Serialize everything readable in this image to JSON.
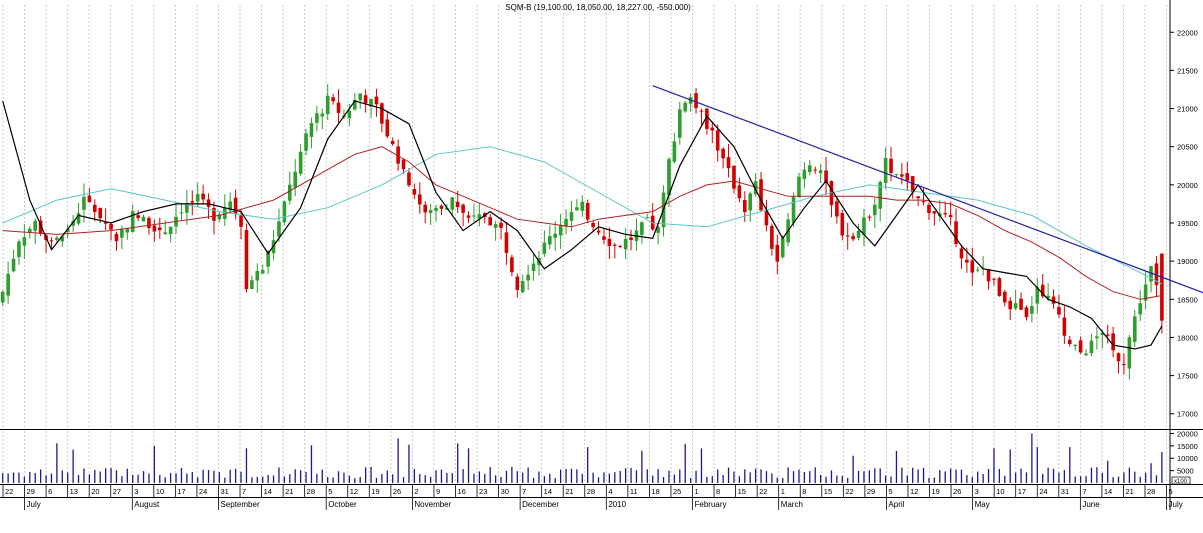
{
  "chart_data": {
    "type": "candlestick",
    "title": "SQM-B (19,100.00, 18,050.00, 18,227.00, -550.000)",
    "price_axis": {
      "min": 16800,
      "max": 22200,
      "ticks": [
        17000,
        17500,
        18000,
        18500,
        19000,
        19500,
        20000,
        20500,
        21000,
        21500,
        22000
      ]
    },
    "volume_axis": {
      "max": 21000,
      "ticks": [
        5000,
        10000,
        15000,
        20000
      ],
      "unit_label": "x100"
    },
    "date_ticks": [
      "22",
      "29",
      "6",
      "13",
      "20",
      "27",
      "3",
      "10",
      "17",
      "24",
      "31",
      "7",
      "14",
      "21",
      "28",
      "5",
      "12",
      "19",
      "26",
      "2",
      "9",
      "16",
      "23",
      "30",
      "7",
      "14",
      "21",
      "28",
      "4",
      "11",
      "18",
      "25",
      "1",
      "8",
      "15",
      "22",
      "1",
      "8",
      "15",
      "22",
      "29",
      "5",
      "12",
      "19",
      "26",
      "3",
      "10",
      "17",
      "24",
      "31",
      "7",
      "14",
      "21",
      "28",
      "5"
    ],
    "months": [
      {
        "label": "July",
        "tick": 1
      },
      {
        "label": "August",
        "tick": 6
      },
      {
        "label": "September",
        "tick": 10
      },
      {
        "label": "October",
        "tick": 15
      },
      {
        "label": "November",
        "tick": 19
      },
      {
        "label": "December",
        "tick": 24
      },
      {
        "label": "2010",
        "tick": 28
      },
      {
        "label": "February",
        "tick": 32
      },
      {
        "label": "March",
        "tick": 36
      },
      {
        "label": "April",
        "tick": 41
      },
      {
        "label": "May",
        "tick": 45
      },
      {
        "label": "June",
        "tick": 50
      },
      {
        "label": "July",
        "tick": 54
      }
    ],
    "close_path": [
      [
        0,
        18600
      ],
      [
        3,
        19300
      ],
      [
        6,
        19500
      ],
      [
        9,
        19200
      ],
      [
        12,
        19400
      ],
      [
        15,
        19800
      ],
      [
        18,
        19600
      ],
      [
        21,
        19300
      ],
      [
        24,
        19600
      ],
      [
        27,
        19500
      ],
      [
        30,
        19400
      ],
      [
        33,
        19700
      ],
      [
        36,
        19800
      ],
      [
        39,
        19600
      ],
      [
        42,
        19800
      ],
      [
        44,
        19500
      ],
      [
        45,
        18700
      ],
      [
        48,
        18900
      ],
      [
        51,
        19500
      ],
      [
        54,
        20200
      ],
      [
        57,
        20800
      ],
      [
        60,
        21100
      ],
      [
        63,
        20900
      ],
      [
        66,
        21200
      ],
      [
        69,
        21000
      ],
      [
        72,
        20500
      ],
      [
        74,
        20200
      ],
      [
        76,
        19900
      ],
      [
        78,
        19600
      ],
      [
        80,
        19700
      ],
      [
        83,
        19800
      ],
      [
        86,
        19500
      ],
      [
        89,
        19600
      ],
      [
        92,
        19400
      ],
      [
        95,
        18700
      ],
      [
        98,
        19000
      ],
      [
        101,
        19300
      ],
      [
        104,
        19600
      ],
      [
        107,
        19700
      ],
      [
        110,
        19400
      ],
      [
        113,
        19200
      ],
      [
        116,
        19300
      ],
      [
        119,
        19500
      ],
      [
        121,
        19400
      ],
      [
        123,
        20300
      ],
      [
        125,
        21000
      ],
      [
        127,
        21200
      ],
      [
        129,
        20900
      ],
      [
        131,
        20700
      ],
      [
        133,
        20300
      ],
      [
        135,
        20000
      ],
      [
        137,
        19700
      ],
      [
        139,
        20000
      ],
      [
        141,
        19400
      ],
      [
        143,
        19000
      ],
      [
        145,
        19500
      ],
      [
        147,
        20100
      ],
      [
        149,
        20300
      ],
      [
        151,
        20200
      ],
      [
        153,
        19700
      ],
      [
        155,
        19400
      ],
      [
        157,
        19300
      ],
      [
        159,
        19500
      ],
      [
        161,
        19800
      ],
      [
        163,
        20300
      ],
      [
        165,
        20100
      ],
      [
        167,
        20000
      ],
      [
        169,
        19800
      ],
      [
        171,
        19700
      ],
      [
        173,
        19600
      ],
      [
        175,
        19500
      ],
      [
        177,
        19100
      ],
      [
        179,
        18800
      ],
      [
        181,
        18900
      ],
      [
        183,
        18700
      ],
      [
        185,
        18500
      ],
      [
        187,
        18400
      ],
      [
        189,
        18200
      ],
      [
        191,
        18700
      ],
      [
        193,
        18500
      ],
      [
        195,
        18300
      ],
      [
        197,
        17900
      ],
      [
        199,
        17800
      ],
      [
        201,
        17900
      ],
      [
        203,
        18100
      ],
      [
        205,
        17800
      ],
      [
        207,
        17700
      ],
      [
        208,
        18000
      ],
      [
        210,
        18500
      ],
      [
        212,
        18900
      ],
      [
        213,
        18700
      ],
      [
        214,
        18227
      ]
    ],
    "ma_short_path": [
      [
        0,
        21100
      ],
      [
        5,
        19800
      ],
      [
        9,
        19150
      ],
      [
        14,
        19600
      ],
      [
        20,
        19500
      ],
      [
        26,
        19650
      ],
      [
        32,
        19750
      ],
      [
        38,
        19750
      ],
      [
        44,
        19650
      ],
      [
        49,
        19100
      ],
      [
        55,
        19700
      ],
      [
        60,
        20600
      ],
      [
        65,
        21100
      ],
      [
        70,
        21000
      ],
      [
        75,
        20800
      ],
      [
        80,
        19900
      ],
      [
        85,
        19400
      ],
      [
        90,
        19650
      ],
      [
        95,
        19400
      ],
      [
        100,
        18900
      ],
      [
        105,
        19150
      ],
      [
        110,
        19450
      ],
      [
        115,
        19350
      ],
      [
        120,
        19300
      ],
      [
        125,
        20250
      ],
      [
        130,
        20900
      ],
      [
        135,
        20500
      ],
      [
        140,
        19800
      ],
      [
        144,
        19300
      ],
      [
        148,
        19700
      ],
      [
        152,
        20050
      ],
      [
        157,
        19500
      ],
      [
        161,
        19200
      ],
      [
        165,
        19600
      ],
      [
        169,
        20000
      ],
      [
        173,
        19600
      ],
      [
        177,
        19200
      ],
      [
        181,
        18900
      ],
      [
        185,
        18850
      ],
      [
        189,
        18800
      ],
      [
        193,
        18500
      ],
      [
        197,
        18400
      ],
      [
        201,
        18250
      ],
      [
        205,
        17900
      ],
      [
        209,
        17850
      ],
      [
        212,
        17900
      ],
      [
        214,
        18150
      ]
    ],
    "ma_mid_path": [
      [
        0,
        19400
      ],
      [
        10,
        19350
      ],
      [
        20,
        19400
      ],
      [
        30,
        19500
      ],
      [
        40,
        19600
      ],
      [
        45,
        19700
      ],
      [
        50,
        19800
      ],
      [
        55,
        20000
      ],
      [
        60,
        20200
      ],
      [
        65,
        20400
      ],
      [
        70,
        20500
      ],
      [
        75,
        20300
      ],
      [
        80,
        20000
      ],
      [
        85,
        19850
      ],
      [
        90,
        19700
      ],
      [
        95,
        19550
      ],
      [
        100,
        19500
      ],
      [
        105,
        19450
      ],
      [
        110,
        19550
      ],
      [
        115,
        19600
      ],
      [
        120,
        19650
      ],
      [
        125,
        19850
      ],
      [
        130,
        20000
      ],
      [
        135,
        20050
      ],
      [
        140,
        19950
      ],
      [
        145,
        19850
      ],
      [
        150,
        19850
      ],
      [
        155,
        19850
      ],
      [
        160,
        19850
      ],
      [
        165,
        19800
      ],
      [
        170,
        19800
      ],
      [
        175,
        19750
      ],
      [
        180,
        19600
      ],
      [
        185,
        19400
      ],
      [
        190,
        19250
      ],
      [
        195,
        19050
      ],
      [
        200,
        18800
      ],
      [
        205,
        18600
      ],
      [
        210,
        18500
      ],
      [
        214,
        18550
      ]
    ],
    "ma_long_path": [
      [
        0,
        19500
      ],
      [
        10,
        19800
      ],
      [
        20,
        19950
      ],
      [
        30,
        19800
      ],
      [
        40,
        19650
      ],
      [
        50,
        19550
      ],
      [
        60,
        19700
      ],
      [
        70,
        20000
      ],
      [
        80,
        20400
      ],
      [
        90,
        20500
      ],
      [
        100,
        20300
      ],
      [
        110,
        19900
      ],
      [
        120,
        19500
      ],
      [
        130,
        19450
      ],
      [
        140,
        19650
      ],
      [
        150,
        19850
      ],
      [
        160,
        20000
      ],
      [
        170,
        19900
      ],
      [
        180,
        19800
      ],
      [
        190,
        19600
      ],
      [
        200,
        19200
      ],
      [
        210,
        18850
      ],
      [
        214,
        18700
      ]
    ],
    "trendline": {
      "from": [
        120,
        21300
      ],
      "to": [
        223,
        18550
      ]
    },
    "volume_spikes": [
      [
        10,
        16000
      ],
      [
        13,
        13500
      ],
      [
        28,
        15000
      ],
      [
        45,
        14000
      ],
      [
        57,
        15200
      ],
      [
        73,
        18000
      ],
      [
        75,
        15500
      ],
      [
        84,
        16000
      ],
      [
        86,
        14000
      ],
      [
        108,
        14500
      ],
      [
        118,
        13000
      ],
      [
        126,
        15800
      ],
      [
        129,
        14000
      ],
      [
        157,
        11000
      ],
      [
        165,
        13000
      ],
      [
        183,
        14000
      ],
      [
        186,
        13500
      ],
      [
        190,
        20000
      ],
      [
        191,
        14500
      ],
      [
        197,
        14500
      ],
      [
        204,
        9000
      ],
      [
        212,
        8000
      ],
      [
        214,
        12500
      ]
    ]
  }
}
